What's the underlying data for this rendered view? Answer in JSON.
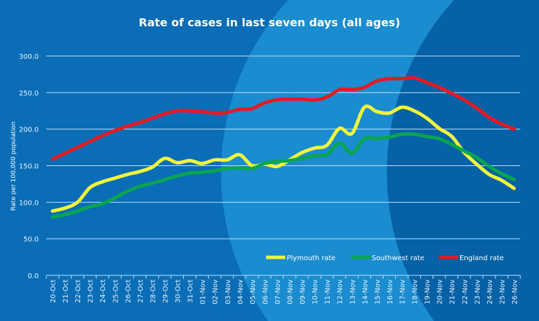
{
  "chart_data": {
    "type": "line",
    "title": "Rate of cases in last seven days (all ages)",
    "xlabel": "",
    "ylabel": "Rate per 100,000 population",
    "ylim": [
      0,
      300
    ],
    "yticks": [
      "0.0",
      "50.0",
      "100.0",
      "150.0",
      "200.0",
      "250.0",
      "300.0"
    ],
    "grid": true,
    "legend_position": "bottom-right",
    "categories": [
      "20-Oct",
      "21-Oct",
      "22-Oct",
      "23-Oct",
      "24-Oct",
      "25-Oct",
      "26-Oct",
      "27-Oct",
      "28-Oct",
      "29-Oct",
      "30-Oct",
      "31-Oct",
      "01-Nov",
      "02-Nov",
      "03-Nov",
      "04-Nov",
      "05-Nov",
      "06-Nov",
      "07-Nov",
      "08-Nov",
      "09-Nov",
      "10-Nov",
      "11-Nov",
      "12-Nov",
      "13-Nov",
      "14-Nov",
      "15-Nov",
      "16-Nov",
      "17-Nov",
      "18-Nov",
      "19-Nov",
      "20-Nov",
      "21-Nov",
      "22-Nov",
      "23-Nov",
      "24-Nov",
      "25-Nov",
      "26-Nov"
    ],
    "series": [
      {
        "name": "Plymouth rate",
        "color": "#f2f53a",
        "values": [
          88,
          92,
          100,
          120,
          128,
          133,
          138,
          142,
          148,
          160,
          154,
          157,
          153,
          158,
          158,
          165,
          150,
          152,
          149,
          158,
          168,
          174,
          178,
          201,
          194,
          230,
          224,
          222,
          230,
          225,
          215,
          201,
          190,
          168,
          152,
          138,
          130,
          119
        ]
      },
      {
        "name": "Southwest rate",
        "color": "#0aa550",
        "values": [
          80,
          83,
          88,
          94,
          98,
          106,
          115,
          122,
          126,
          131,
          136,
          140,
          141,
          143,
          146,
          147,
          146,
          153,
          156,
          157,
          160,
          164,
          165,
          181,
          167,
          187,
          187,
          189,
          193,
          193,
          190,
          187,
          179,
          170,
          161,
          149,
          139,
          131
        ]
      },
      {
        "name": "England rate",
        "color": "#e31b23",
        "values": [
          159,
          167,
          175,
          183,
          191,
          198,
          204,
          209,
          215,
          221,
          225,
          225,
          224,
          222,
          223,
          227,
          228,
          236,
          240,
          241,
          241,
          240,
          244,
          254,
          254,
          257,
          266,
          269,
          269,
          270,
          264,
          257,
          249,
          240,
          229,
          216,
          207,
          200
        ]
      }
    ]
  },
  "colors": {
    "background": "#0a6db6",
    "light_circle": "#1a8ccf",
    "dark_circle": "#0661a6",
    "grid": "#bfe3ff"
  }
}
